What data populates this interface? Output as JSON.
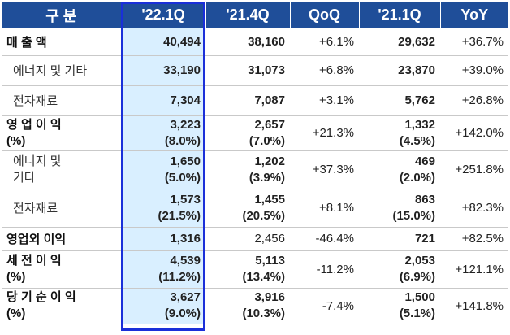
{
  "header": [
    "구 분",
    "'22.1Q",
    "'21.4Q",
    "QoQ",
    "'21.1Q",
    "YoY"
  ],
  "rows": [
    {
      "label": "매 출 액",
      "label2": "",
      "q221": "40,494",
      "q221p": "",
      "q214": "38,160",
      "q214p": "",
      "qoq": "+6.1%",
      "q211": "29,632",
      "q211p": "",
      "yoy": "+36.7%"
    },
    {
      "label": "에너지 및 기타",
      "label2": "",
      "q221": "33,190",
      "q221p": "",
      "q214": "31,073",
      "q214p": "",
      "qoq": "+6.8%",
      "q211": "23,870",
      "q211p": "",
      "yoy": "+39.0%"
    },
    {
      "label": "전자재료",
      "label2": "",
      "q221": "7,304",
      "q221p": "",
      "q214": "7,087",
      "q214p": "",
      "qoq": "+3.1%",
      "q211": "5,762",
      "q211p": "",
      "yoy": "+26.8%"
    },
    {
      "label": "영 업 이 익",
      "label2": "(%)",
      "q221": "3,223",
      "q221p": "(8.0%)",
      "q214": "2,657",
      "q214p": "(7.0%)",
      "qoq": "+21.3%",
      "q211": "1,332",
      "q211p": "(4.5%)",
      "yoy": "+142.0%"
    },
    {
      "label": "에너지 및",
      "label2": "기타",
      "q221": "1,650",
      "q221p": "(5.0%)",
      "q214": "1,202",
      "q214p": "(3.9%)",
      "qoq": "+37.3%",
      "q211": "469",
      "q211p": "(2.0%)",
      "yoy": "+251.8%"
    },
    {
      "label": "전자재료",
      "label2": "",
      "q221": "1,573",
      "q221p": "(21.5%)",
      "q214": "1,455",
      "q214p": "(20.5%)",
      "qoq": "+8.1%",
      "q211": "863",
      "q211p": "(15.0%)",
      "yoy": "+82.3%"
    },
    {
      "label": "영업외 이익",
      "label2": "",
      "q221": "1,316",
      "q221p": "",
      "q214": "2,456",
      "q214p": "",
      "qoq": "-46.4%",
      "q211": "721",
      "q211p": "",
      "yoy": "+82.5%"
    },
    {
      "label": "세 전 이 익",
      "label2": "(%)",
      "q221": "4,539",
      "q221p": "(11.2%)",
      "q214": "5,113",
      "q214p": "(13.4%)",
      "qoq": "-11.2%",
      "q211": "2,053",
      "q211p": "(6.9%)",
      "yoy": "+121.1%"
    },
    {
      "label": "당 기 순 이 익",
      "label2": "(%)",
      "q221": "3,627",
      "q221p": "(9.0%)",
      "q214": "3,916",
      "q214p": "(10.3%)",
      "qoq": "-7.4%",
      "q211": "1,500",
      "q211p": "(5.1%)",
      "yoy": "+141.8%"
    }
  ],
  "colors": {
    "header_bg": "#1f4e99",
    "highlight_bg": "#d9efff",
    "highlight_border": "#1a2fd9"
  }
}
